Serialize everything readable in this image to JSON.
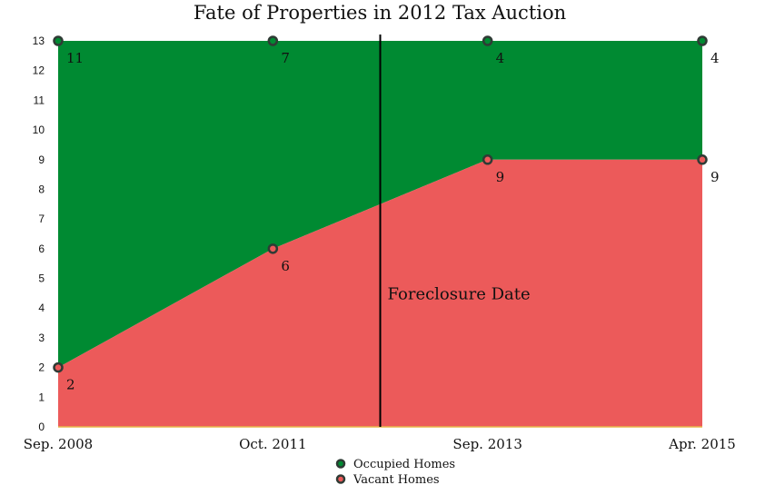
{
  "chart_data": {
    "type": "area",
    "title": "Fate of Properties in 2012 Tax Auction",
    "categories": [
      "Sep. 2008",
      "Oct. 2011",
      "Sep. 2013",
      "Apr. 2015"
    ],
    "series": [
      {
        "name": "Vacant Homes",
        "values": [
          2,
          6,
          9,
          9
        ],
        "color": "#ec5a5a"
      },
      {
        "name": "Occupied Homes",
        "values": [
          11,
          7,
          4,
          4
        ],
        "color": "#008a32"
      }
    ],
    "stacked": true,
    "ylim": [
      0,
      13
    ],
    "yticks": [
      0,
      1,
      2,
      3,
      4,
      5,
      6,
      7,
      8,
      9,
      10,
      11,
      12,
      13
    ],
    "annotation": {
      "text": "Foreclosure Date",
      "x_category_position": 1.5
    },
    "legend": {
      "position": "bottom"
    },
    "grid": false,
    "marker_outline_color": "#2f3b35",
    "baseline_color": "#e8b64a"
  }
}
